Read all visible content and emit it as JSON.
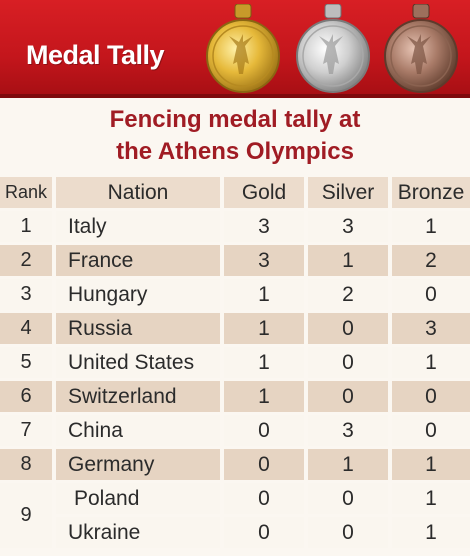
{
  "banner": {
    "title": "Medal Tally",
    "colors": {
      "red": "#c4161c",
      "gold": "#d8a92a",
      "silver": "#c9c9c9",
      "bronze": "#9b6b58"
    }
  },
  "heading": {
    "line1": "Fencing medal tally at",
    "line2": "the Athens Olympics"
  },
  "table": {
    "headers": {
      "rank": "Rank",
      "nation": "Nation",
      "gold": "Gold",
      "silver": "Silver",
      "bronze": "Bronze"
    },
    "rows": [
      {
        "rank": "1",
        "nation": "Italy",
        "gold": "3",
        "silver": "3",
        "bronze": "1"
      },
      {
        "rank": "2",
        "nation": "France",
        "gold": "3",
        "silver": "1",
        "bronze": "2"
      },
      {
        "rank": "3",
        "nation": "Hungary",
        "gold": "1",
        "silver": "2",
        "bronze": "0"
      },
      {
        "rank": "4",
        "nation": "Russia",
        "gold": "1",
        "silver": "0",
        "bronze": "3"
      },
      {
        "rank": "5",
        "nation": "United States",
        "gold": "1",
        "silver": "0",
        "bronze": "1"
      },
      {
        "rank": "6",
        "nation": "Switzerland",
        "gold": "1",
        "silver": "0",
        "bronze": "0"
      },
      {
        "rank": "7",
        "nation": "China",
        "gold": "0",
        "silver": "3",
        "bronze": "0"
      },
      {
        "rank": "8",
        "nation": "Germany",
        "gold": "0",
        "silver": "1",
        "bronze": "1"
      },
      {
        "rank": "9",
        "nation": "Poland",
        "gold": "0",
        "silver": "0",
        "bronze": "1"
      },
      {
        "rank": "",
        "nation": "Ukraine",
        "gold": "0",
        "silver": "0",
        "bronze": "1"
      }
    ]
  }
}
